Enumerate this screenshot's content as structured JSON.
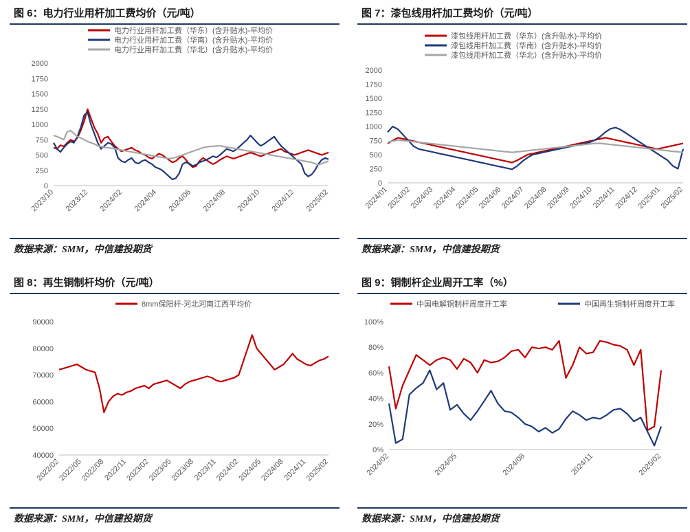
{
  "source_text": "数据来源：SMM，中信建投期货",
  "charts": [
    {
      "id": "p6",
      "title": "图 6：电力行业用杆加工费均价（元/吨）",
      "source": "数据来源：SMM，中信建投期货",
      "chart_data": {
        "type": "line",
        "title": "图 6：电力行业用杆加工费均价（元/吨）",
        "x_ticks": [
          "2023/10",
          "2023/12",
          "2024/02",
          "2024/04",
          "2024/06",
          "2024/08",
          "2024/10",
          "2024/12",
          "2025/02"
        ],
        "y_ticks": [
          0,
          250,
          500,
          750,
          1000,
          1250,
          1500,
          1750,
          2000
        ],
        "ylim": [
          0,
          2000
        ],
        "series": [
          {
            "name": "电力行业用杆加工费（华东）(含升贴水)-平均价",
            "color": "#c00000",
            "values": [
              620,
              600,
              660,
              640,
              700,
              750,
              720,
              780,
              900,
              1050,
              1250,
              1100,
              950,
              850,
              700,
              780,
              800,
              720,
              650,
              600,
              560,
              580,
              600,
              620,
              580,
              560,
              520,
              500,
              460,
              440,
              480,
              520,
              500,
              460,
              420,
              380,
              400,
              450,
              480,
              420,
              350,
              300,
              320,
              400,
              450,
              420,
              380,
              350,
              380,
              420,
              450,
              480,
              460,
              440,
              460,
              480,
              500,
              520,
              540,
              520,
              500,
              480,
              500,
              520,
              540,
              560,
              580,
              600,
              560,
              540,
              520,
              500,
              520,
              540,
              560,
              580,
              560,
              540,
              520,
              500,
              520,
              540
            ]
          },
          {
            "name": "电力行业用杆加工费（华南）(含升贴水)-平均价",
            "color": "#1f3a7a",
            "values": [
              700,
              600,
              550,
              620,
              680,
              720,
              700,
              800,
              950,
              1150,
              1200,
              1000,
              850,
              700,
              600,
              650,
              700,
              680,
              620,
              450,
              400,
              380,
              420,
              450,
              380,
              360,
              400,
              420,
              380,
              350,
              300,
              280,
              250,
              200,
              150,
              100,
              120,
              200,
              350,
              380,
              360,
              320,
              340,
              380,
              400,
              420,
              450,
              480,
              460,
              500,
              550,
              600,
              580,
              560,
              600,
              650,
              700,
              750,
              820,
              760,
              700,
              650,
              680,
              720,
              760,
              800,
              720,
              650,
              600,
              550,
              500,
              450,
              400,
              350,
              200,
              150,
              180,
              250,
              350,
              420,
              450,
              430
            ]
          },
          {
            "name": "电力行业用杆加工费（华北）(含升贴水)-平均价",
            "color": "#a6a6a6",
            "values": [
              820,
              800,
              780,
              750,
              880,
              900,
              850,
              800,
              780,
              750,
              720,
              700,
              680,
              650,
              640,
              620,
              620,
              610,
              600,
              590,
              580,
              570,
              560,
              550,
              540,
              530,
              520,
              510,
              500,
              490,
              480,
              470,
              460,
              450,
              440,
              450,
              460,
              480,
              500,
              520,
              540,
              560,
              580,
              600,
              620,
              630,
              640,
              640,
              650,
              650,
              640,
              630,
              620,
              610,
              600,
              590,
              580,
              570,
              560,
              550,
              540,
              530,
              520,
              510,
              500,
              490,
              480,
              470,
              460,
              450,
              440,
              430,
              420,
              410,
              400,
              390,
              380,
              360,
              340,
              360,
              380,
              400
            ]
          }
        ]
      }
    },
    {
      "id": "p7",
      "title": "图 7：漆包线用杆加工费均价（元/吨）",
      "source": "数据来源：SMM，中信建投期货",
      "chart_data": {
        "type": "line",
        "title": "图 7：漆包线用杆加工费均价（元/吨）",
        "x_ticks": [
          "2024/01",
          "2024/02",
          "2024/03",
          "2024/04",
          "2024/05",
          "2024/06",
          "2024/07",
          "2024/08",
          "2024/09",
          "2024/10",
          "2024/11",
          "2024/12",
          "2025/01",
          "2025/02"
        ],
        "y_ticks": [
          0,
          250,
          500,
          750,
          1000,
          1250,
          1500,
          1750,
          2000
        ],
        "ylim": [
          0,
          2000
        ],
        "series": [
          {
            "name": "漆包线用杆加工费（华东）(含升贴水)-平均价",
            "color": "#c00000",
            "values": [
              700,
              750,
              800,
              780,
              760,
              740,
              720,
              700,
              680,
              660,
              640,
              620,
              600,
              580,
              560,
              540,
              520,
              500,
              480,
              460,
              440,
              420,
              400,
              380,
              360,
              400,
              450,
              500,
              520,
              540,
              560,
              580,
              600,
              620,
              640,
              660,
              680,
              700,
              720,
              740,
              760,
              780,
              800,
              780,
              760,
              740,
              720,
              700,
              680,
              660,
              640,
              620,
              600,
              620,
              640,
              660,
              680,
              700
            ]
          },
          {
            "name": "漆包线用杆加工费（华南）(含升贴水)-平均价",
            "color": "#1f3a7a",
            "values": [
              900,
              1000,
              950,
              850,
              750,
              650,
              600,
              580,
              560,
              540,
              520,
              500,
              480,
              460,
              440,
              420,
              400,
              380,
              360,
              340,
              320,
              300,
              280,
              260,
              240,
              300,
              380,
              450,
              500,
              520,
              540,
              560,
              580,
              600,
              620,
              640,
              660,
              680,
              700,
              720,
              760,
              820,
              900,
              960,
              980,
              940,
              880,
              820,
              760,
              700,
              640,
              580,
              520,
              460,
              400,
              300,
              250,
              600
            ]
          },
          {
            "name": "漆包线用杆加工费（华北）(含升贴水)-平均价",
            "color": "#a6a6a6",
            "values": [
              720,
              740,
              760,
              750,
              740,
              730,
              720,
              710,
              700,
              690,
              680,
              670,
              660,
              650,
              640,
              630,
              620,
              610,
              600,
              590,
              580,
              570,
              560,
              550,
              540,
              550,
              560,
              570,
              580,
              590,
              600,
              610,
              620,
              630,
              640,
              650,
              660,
              670,
              680,
              690,
              700,
              700,
              690,
              680,
              670,
              660,
              650,
              640,
              630,
              620,
              610,
              600,
              590,
              580,
              570,
              560,
              550,
              540
            ]
          }
        ]
      }
    },
    {
      "id": "p8",
      "title": "图 8：再生铜制杆均价（元/吨）",
      "source": "数据来源：SMM，中信建投期货",
      "chart_data": {
        "type": "line",
        "title": "图 8：再生铜制杆均价（元/吨）",
        "x_ticks": [
          "2022/02",
          "2022/05",
          "2022/08",
          "2022/11",
          "2023/02",
          "2023/05",
          "2023/08",
          "2023/11",
          "2024/02",
          "2024/05",
          "2024/08",
          "2024/11",
          "2025/02"
        ],
        "y_ticks": [
          40000,
          50000,
          60000,
          70000,
          80000,
          90000
        ],
        "ylim": [
          40000,
          90000
        ],
        "series": [
          {
            "name": "8mm保阳杆-河北河南江西平均价",
            "color": "#c00000",
            "values": [
              72000,
              72500,
              73000,
              73500,
              74000,
              73000,
              72000,
              71500,
              71000,
              65000,
              56000,
              60000,
              62000,
              63000,
              62500,
              63500,
              64000,
              65000,
              65500,
              66000,
              65000,
              66500,
              67000,
              67500,
              68000,
              67000,
              66000,
              65000,
              66500,
              67500,
              68000,
              68500,
              69000,
              69500,
              69000,
              68000,
              67500,
              68000,
              68500,
              69000,
              70000,
              75000,
              80000,
              85000,
              80000,
              78000,
              76000,
              74000,
              72000,
              73000,
              74000,
              76000,
              78000,
              76000,
              75000,
              74000,
              73500,
              74500,
              75500,
              76000,
              77000
            ]
          }
        ]
      }
    },
    {
      "id": "p9",
      "title": "图 9：铜制杆企业周开工率（%）",
      "source": "数据来源：SMM，中信建投期货",
      "chart_data": {
        "type": "line",
        "title": "图 9：铜制杆企业周开工率（%）",
        "x_ticks": [
          "2024/02",
          "2024/05",
          "2024/08",
          "2024/11",
          "2025/02"
        ],
        "y_ticks": [
          "0%",
          "20%",
          "40%",
          "60%",
          "80%",
          "100%"
        ],
        "ylim": [
          0,
          100
        ],
        "series": [
          {
            "name": "中国电解铜制杆周度开工率",
            "color": "#c00000",
            "values": [
              65,
              32,
              50,
              62,
              74,
              70,
              66,
              70,
              72,
              70,
              63,
              71,
              68,
              60,
              70,
              68,
              69,
              72,
              77,
              78,
              72,
              80,
              79,
              80,
              78,
              85,
              56,
              66,
              80,
              75,
              76,
              85,
              84,
              82,
              81,
              78,
              66,
              78,
              15,
              18,
              62
            ]
          },
          {
            "name": "中国再生铜制杆周度开工率",
            "color": "#1f3a7a",
            "values": [
              36,
              5,
              8,
              43,
              48,
              52,
              62,
              47,
              52,
              31,
              35,
              28,
              23,
              30,
              38,
              46,
              36,
              30,
              29,
              25,
              20,
              18,
              14,
              17,
              13,
              16,
              24,
              30,
              27,
              23,
              25,
              24,
              27,
              31,
              32,
              28,
              22,
              25,
              14,
              3,
              18
            ]
          }
        ]
      }
    }
  ]
}
